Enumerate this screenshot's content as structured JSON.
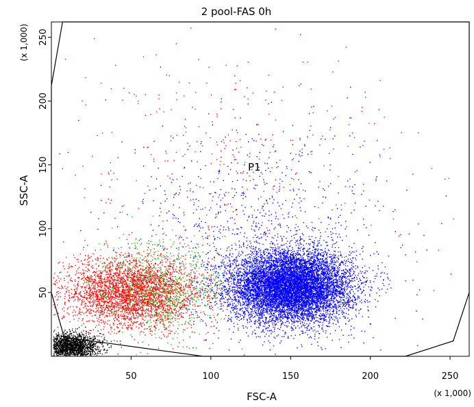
{
  "chart_data": {
    "type": "scatter",
    "title": "2 pool-FAS 0h",
    "xlabel": "FSC-A",
    "ylabel": "SSC-A",
    "x_unit": "(x 1,000)",
    "y_unit": "(x 1,000)",
    "xlim": [
      0,
      262
    ],
    "ylim": [
      0,
      262
    ],
    "xticks": [
      50,
      100,
      150,
      200,
      250
    ],
    "yticks": [
      50,
      100,
      150,
      200,
      250
    ],
    "grid": false,
    "gate_label": "P1",
    "colors": {
      "blue": "#0000ff",
      "red": "#ff0000",
      "green": "#00d000",
      "black": "#000000",
      "frame": "#000000"
    },
    "populations": [
      {
        "color": "blue",
        "count": 9000,
        "center": [
          150,
          55
        ],
        "spread": [
          19,
          14
        ]
      },
      {
        "color": "blue",
        "count": 900,
        "center": [
          130,
          95
        ],
        "spread": [
          40,
          45
        ]
      },
      {
        "color": "red",
        "count": 3500,
        "center": [
          50,
          50
        ],
        "spread": [
          22,
          14
        ]
      },
      {
        "color": "red",
        "count": 400,
        "center": [
          120,
          150
        ],
        "spread": [
          55,
          50
        ]
      },
      {
        "color": "green",
        "count": 700,
        "center": [
          70,
          55
        ],
        "spread": [
          20,
          18
        ]
      },
      {
        "color": "black",
        "count": 1800,
        "center": [
          12,
          8
        ],
        "spread": [
          9,
          5
        ]
      }
    ],
    "gate_polygon": [
      [
        7,
        262
      ],
      [
        0,
        212
      ],
      [
        0,
        50
      ],
      [
        8,
        15
      ],
      [
        95,
        0
      ],
      [
        222,
        0
      ],
      [
        252,
        12
      ],
      [
        262,
        50
      ],
      [
        262,
        262
      ]
    ]
  }
}
